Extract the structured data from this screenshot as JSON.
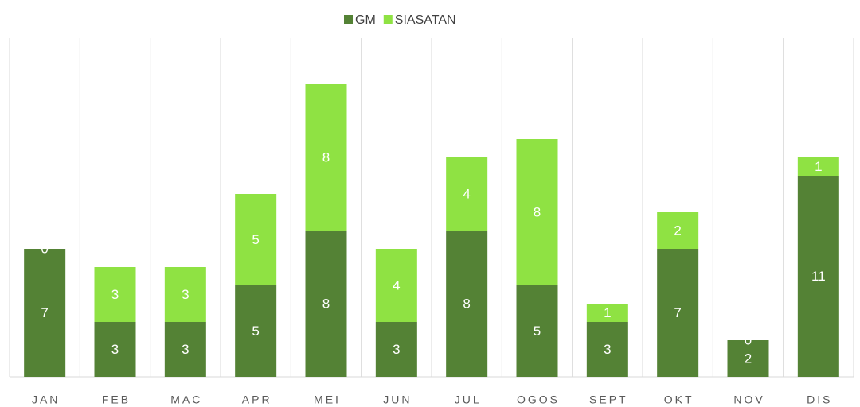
{
  "chart_data": {
    "type": "stacked_bar",
    "categories": [
      "JAN",
      "FEB",
      "MAC",
      "APR",
      "MEI",
      "JUN",
      "JUL",
      "OGOS",
      "SEPT",
      "OKT",
      "NOV",
      "DIS"
    ],
    "series": [
      {
        "name": "GM",
        "color": "#548235",
        "values": [
          7,
          3,
          3,
          5,
          8,
          3,
          8,
          5,
          3,
          7,
          2,
          11
        ]
      },
      {
        "name": "SIASATAN",
        "color": "#8fe243",
        "values": [
          0,
          3,
          3,
          5,
          8,
          4,
          4,
          8,
          1,
          2,
          0,
          1
        ]
      }
    ],
    "ylim": [
      0,
      19
    ],
    "legend": "top",
    "grid": "vertical"
  }
}
